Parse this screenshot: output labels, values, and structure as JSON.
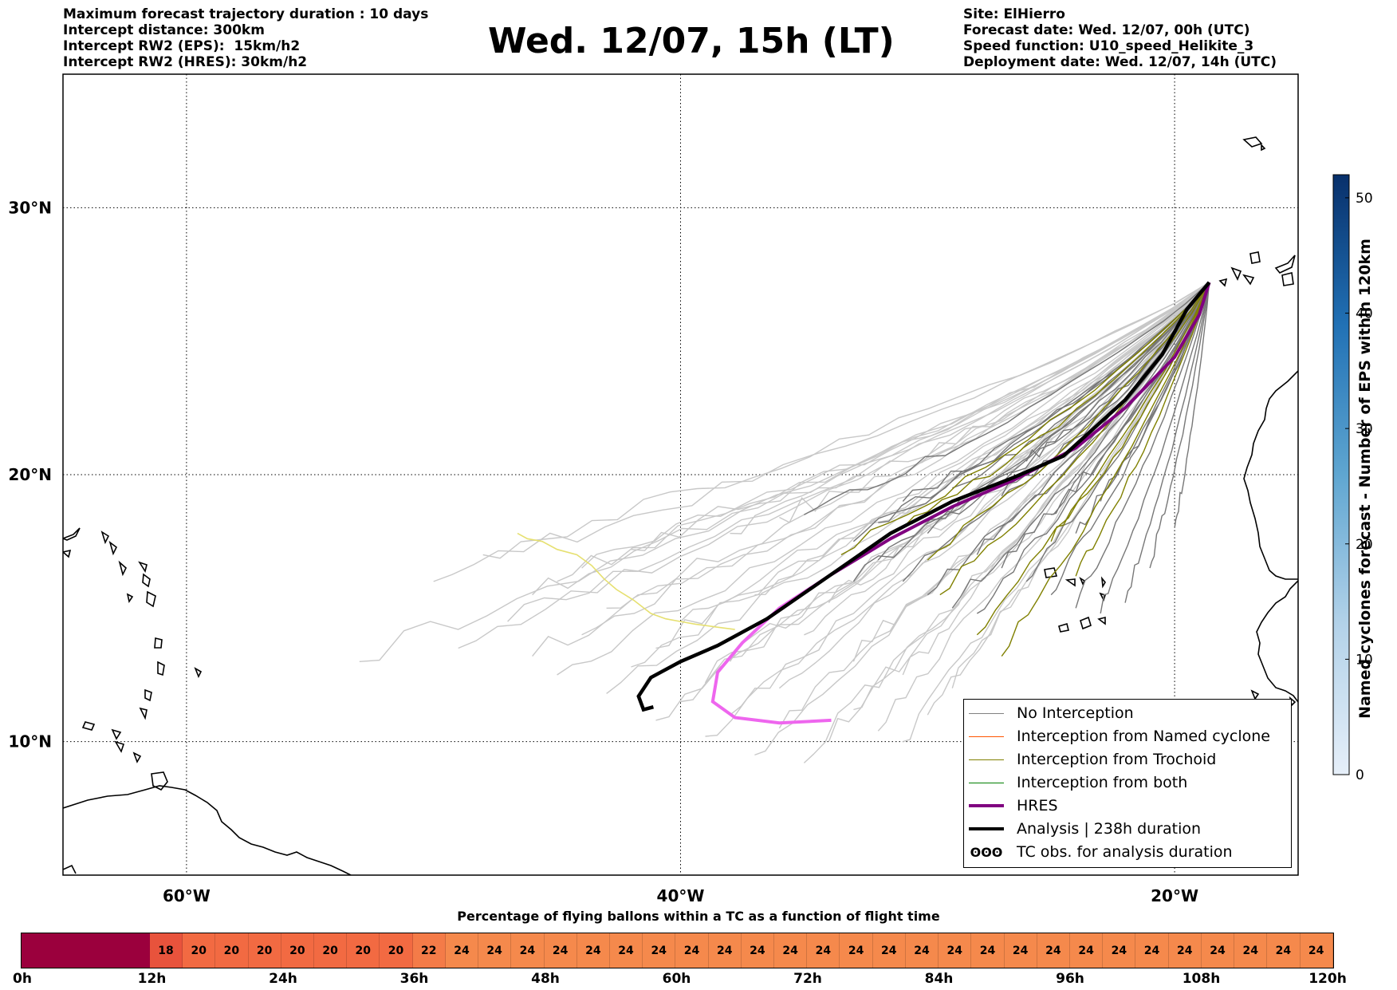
{
  "header": {
    "left_lines": [
      "Maximum forecast trajectory duration : 10 days",
      "Intercept distance: 300km",
      "Intercept RW2 (EPS):  15km/h2",
      "Intercept RW2 (HRES): 30km/h2"
    ],
    "title": "Wed. 12/07, 15h (LT)",
    "right_lines": [
      "Site: ElHierro",
      "Forecast date: Wed. 12/07, 00h (UTC)",
      "Speed function: U10_speed_Helikite_3",
      "Deployment date: Wed. 12/07, 14h (UTC)"
    ]
  },
  "map": {
    "lat_labels": [
      "30°N",
      "20°N",
      "10°N"
    ],
    "lon_labels": [
      "60°W",
      "40°W",
      "20°W"
    ]
  },
  "legend": {
    "items": [
      {
        "label": "No Interception",
        "color": "#808080",
        "style": "thin"
      },
      {
        "label": "Interception from Named cyclone",
        "color": "#ff5500",
        "style": "thin"
      },
      {
        "label": "Interception from Trochoid",
        "color": "#808000",
        "style": "thin"
      },
      {
        "label": "Interception from both",
        "color": "#008000",
        "style": "thin"
      },
      {
        "label": "HRES",
        "color": "#800080",
        "style": "thick"
      },
      {
        "label": "Analysis | 238h duration",
        "color": "#000000",
        "style": "thick"
      }
    ],
    "symbol_item": {
      "symbol": "ʘʘʘ",
      "label": "TC obs. for analysis duration"
    }
  },
  "colorbar": {
    "label": "Named cyclones forecast - Number of EPS within 120km",
    "ticks": [
      "0",
      "10",
      "20",
      "30",
      "40",
      "50"
    ],
    "min": 0,
    "max": 52,
    "color_low": "#e6eff9",
    "color_high": "#08306b"
  },
  "bottom_bar": {
    "title": "Percentage of flying ballons within a TC as a function of flight time",
    "tick_labels": [
      "0h",
      "12h",
      "24h",
      "36h",
      "48h",
      "60h",
      "72h",
      "84h",
      "96h",
      "108h",
      "120h"
    ],
    "cells": [
      "",
      "",
      "",
      "",
      "18",
      "20",
      "20",
      "20",
      "20",
      "20",
      "20",
      "20",
      "22",
      "24",
      "24",
      "24",
      "24",
      "24",
      "24",
      "24",
      "24",
      "24",
      "24",
      "24",
      "24",
      "24",
      "24",
      "24",
      "24",
      "24",
      "24",
      "24",
      "24",
      "24",
      "24",
      "24",
      "24",
      "24",
      "24",
      "24"
    ],
    "colors": {
      "dark": "#9b003d",
      "c18": "#e8533c",
      "c20": "#f26a42",
      "c22": "#f47b48",
      "c24": "#f5894c"
    }
  },
  "chart_data": {
    "type": "line",
    "title": "Wed. 12/07, 15h (LT)",
    "xlabel": "",
    "ylabel": "",
    "xlim": [
      -65,
      -15
    ],
    "ylim": [
      5,
      35
    ],
    "grid": true,
    "series": [
      {
        "name": "Analysis | 238h duration",
        "color": "#000000",
        "lon": [
          -41.1,
          -41.5,
          -41.7,
          -41.2,
          -40.0,
          -38.5,
          -36.5,
          -34.0,
          -31.5,
          -29.0,
          -26.5,
          -24.5,
          -22.0,
          -20.5,
          -19.5,
          -18.6
        ],
        "lat": [
          11.3,
          11.2,
          11.7,
          12.4,
          13.0,
          13.6,
          14.6,
          16.2,
          17.8,
          19.0,
          19.9,
          20.7,
          22.8,
          24.5,
          26.2,
          27.2
        ]
      },
      {
        "name": "HRES",
        "color": "#800080",
        "lon": [
          -33.9,
          -36.0,
          -37.8,
          -38.7,
          -38.5,
          -37.5,
          -36.0,
          -34.0,
          -31.5,
          -29.0,
          -26.5,
          -24.0,
          -22.0,
          -20.0,
          -19.0,
          -18.6
        ],
        "lat": [
          10.8,
          10.7,
          10.9,
          11.5,
          12.6,
          13.7,
          15.0,
          16.2,
          17.6,
          18.8,
          19.8,
          21.0,
          22.5,
          24.4,
          26.0,
          27.2
        ]
      }
    ]
  }
}
